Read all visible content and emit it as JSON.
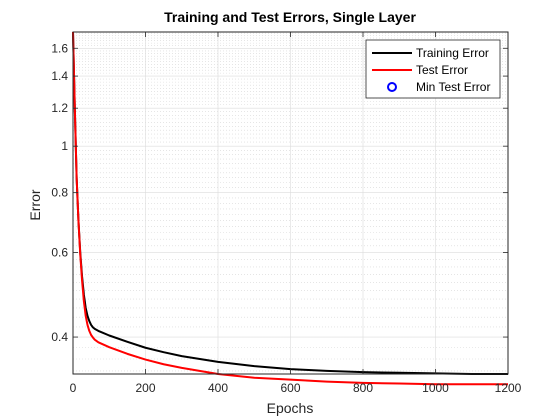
{
  "chart_data": {
    "type": "line",
    "title": "Training and Test Errors, Single Layer",
    "xlabel": "Epochs",
    "ylabel": "Error",
    "xlim": [
      0,
      1200
    ],
    "ylim": [
      0.335,
      1.73
    ],
    "y_scale": "log",
    "grid": true,
    "minor_grid": true,
    "legend_position": "top-right",
    "xticks": [
      0,
      200,
      400,
      600,
      800,
      1000,
      1200
    ],
    "xtick_labels": [
      "0",
      "200",
      "400",
      "600",
      "800",
      "1000",
      "1200"
    ],
    "yticks": [
      0.4,
      0.6,
      0.8,
      1,
      1.2,
      1.4,
      1.6
    ],
    "ytick_labels": [
      "0.4",
      "0.6",
      "0.8",
      "1",
      "1.2",
      "1.4",
      "1.6"
    ],
    "series": [
      {
        "name": "Training Error",
        "color": "#000000",
        "x": [
          0,
          5,
          10,
          15,
          20,
          25,
          30,
          35,
          40,
          45,
          50,
          55,
          60,
          70,
          80,
          100,
          150,
          200,
          250,
          300,
          400,
          500,
          600,
          700,
          800,
          900,
          1000,
          1100,
          1200
        ],
        "y": [
          1.73,
          1.2,
          0.86,
          0.7,
          0.6,
          0.535,
          0.49,
          0.46,
          0.443,
          0.432,
          0.424,
          0.419,
          0.416,
          0.412,
          0.409,
          0.403,
          0.391,
          0.38,
          0.372,
          0.365,
          0.355,
          0.348,
          0.343,
          0.34,
          0.338,
          0.337,
          0.336,
          0.335,
          0.335
        ]
      },
      {
        "name": "Test Error",
        "color": "#ff0000",
        "x": [
          0,
          5,
          10,
          15,
          20,
          25,
          30,
          35,
          40,
          45,
          50,
          55,
          60,
          70,
          80,
          100,
          150,
          200,
          250,
          300,
          400,
          500,
          600,
          700,
          800,
          900,
          1000,
          1100,
          1200
        ],
        "y": [
          1.73,
          1.2,
          0.86,
          0.7,
          0.595,
          0.525,
          0.475,
          0.443,
          0.424,
          0.412,
          0.404,
          0.399,
          0.395,
          0.39,
          0.387,
          0.381,
          0.369,
          0.359,
          0.351,
          0.345,
          0.335,
          0.329,
          0.326,
          0.323,
          0.321,
          0.32,
          0.319,
          0.319,
          0.319
        ]
      },
      {
        "name": "Min Test Error",
        "color": "#0000ff",
        "marker": "circle",
        "x": [],
        "y": []
      }
    ]
  }
}
